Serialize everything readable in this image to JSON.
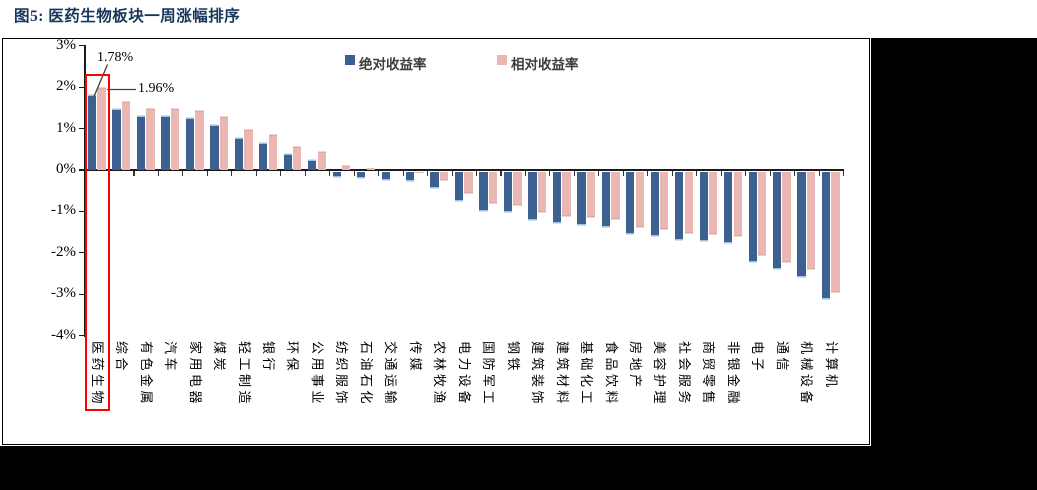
{
  "title": "图5: 医药生物板块一周涨幅排序",
  "legend": {
    "absolute": "绝对收益率",
    "relative": "相对收益率"
  },
  "colors": {
    "absolute_series": "#3C6090",
    "relative_series": "#EBB7B2",
    "title_text": "#16365C",
    "highlight_box": "#FF0000"
  },
  "annotations": {
    "absolute_value_label": "1.78%",
    "relative_value_label": "1.96%"
  },
  "highlighted_category": "医药生物",
  "chart_data": {
    "type": "bar",
    "categories": [
      "医药生物",
      "综合",
      "有色金属",
      "汽车",
      "家用电器",
      "煤炭",
      "轻工制造",
      "银行",
      "环保",
      "公用事业",
      "纺织服饰",
      "石油石化",
      "交通运输",
      "传媒",
      "农林牧渔",
      "电力设备",
      "国防军工",
      "钢铁",
      "建筑装饰",
      "建筑材料",
      "基础化工",
      "食品饮料",
      "房地产",
      "美容护理",
      "社会服务",
      "商贸零售",
      "非银金融",
      "电子",
      "通信",
      "机械设备",
      "计算机"
    ],
    "series": [
      {
        "name": "绝对收益率",
        "color": "#3C6090",
        "values": [
          1.78,
          1.45,
          1.28,
          1.27,
          1.22,
          1.07,
          0.75,
          0.63,
          0.36,
          0.22,
          -0.1,
          -0.14,
          -0.18,
          -0.2,
          -0.36,
          -0.68,
          -0.92,
          -0.96,
          -1.14,
          -1.22,
          -1.26,
          -1.3,
          -1.49,
          -1.54,
          -1.63,
          -1.66,
          -1.7,
          -2.15,
          -2.33,
          -2.51,
          -3.04
        ]
      },
      {
        "name": "相对收益率",
        "color": "#EBB7B2",
        "values": [
          1.96,
          1.62,
          1.46,
          1.44,
          1.4,
          1.25,
          0.93,
          0.81,
          0.54,
          0.4,
          0.08,
          0.04,
          0.0,
          -0.02,
          -0.18,
          -0.5,
          -0.74,
          -0.78,
          -0.96,
          -1.04,
          -1.08,
          -1.12,
          -1.31,
          -1.36,
          -1.45,
          -1.48,
          -1.52,
          -2.0,
          -2.15,
          -2.33,
          -2.87
        ]
      }
    ],
    "title": "图5: 医药生物板块一周涨幅排序",
    "xlabel": "",
    "ylabel": "",
    "ylim": [
      -4,
      3
    ],
    "yticks": [
      "3%",
      "2%",
      "1%",
      "0%",
      "-1%",
      "-2%",
      "-3%",
      "-4%"
    ],
    "grid": false,
    "legend_position": "top",
    "annotations": [
      {
        "category": "医药生物",
        "series": "绝对收益率",
        "text": "1.78%"
      },
      {
        "category": "医药生物",
        "series": "相对收益率",
        "text": "1.96%"
      }
    ]
  }
}
